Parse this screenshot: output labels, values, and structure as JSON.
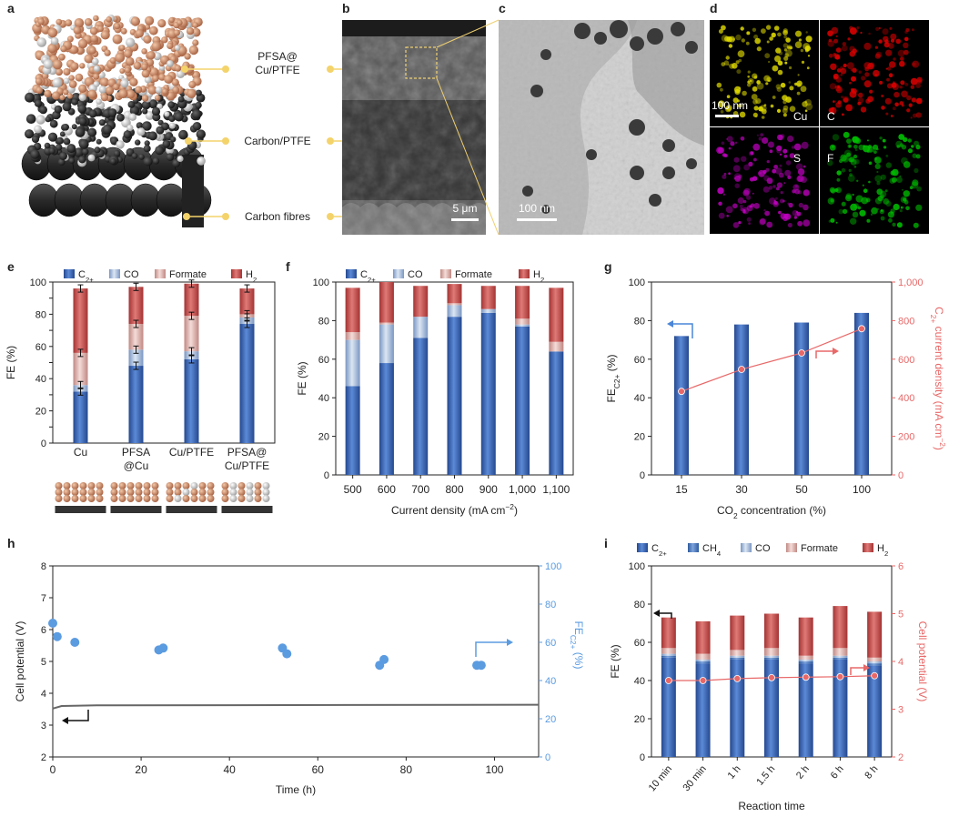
{
  "panel_letters": [
    "a",
    "b",
    "c",
    "d",
    "e",
    "f",
    "g",
    "h",
    "i"
  ],
  "panel_a": {
    "labels": [
      "PFSA@\nCu/PTFE",
      "Carbon/PTFE",
      "Carbon fibres"
    ]
  },
  "panel_b": {
    "scale_bar": "5 μm"
  },
  "panel_c": {
    "scale_bar": "100 nm"
  },
  "panel_d": {
    "scale_bar": "100 nm",
    "elements": [
      "Cu",
      "C",
      "S",
      "F"
    ],
    "colors": [
      "#e6e000",
      "#e00000",
      "#c000c0",
      "#00c000"
    ]
  },
  "colors": {
    "C2plus": "#3a68b8",
    "CH4": "#4a78c0",
    "CO": "#9eb6d6",
    "Formate": "#d9a8a3",
    "H2": "#c84c4c",
    "potential": "#e86868",
    "fe_h": "#5b9be0",
    "cell_h": "#666666"
  },
  "chart_data": [
    {
      "panel": "e",
      "type": "bar",
      "stacked": true,
      "categories": [
        "Cu",
        "PFSA\n@Cu",
        "Cu/PTFE",
        "PFSA@\nCu/PTFE"
      ],
      "ylabel": "FE (%)",
      "ylim": [
        0,
        100
      ],
      "yticks": [
        0,
        10,
        20,
        30,
        40,
        50,
        60,
        70,
        80,
        90,
        100
      ],
      "ytick_labels": [
        "0",
        "",
        "20",
        "",
        "40",
        "",
        "60",
        "",
        "80",
        "",
        "100"
      ],
      "legend": [
        "C2+",
        "CO",
        "Formate",
        "H2"
      ],
      "series": [
        {
          "name": "C2+",
          "values": [
            32,
            48,
            52,
            74
          ]
        },
        {
          "name": "CO",
          "values": [
            4,
            10,
            5,
            4
          ]
        },
        {
          "name": "Formate",
          "values": [
            20,
            16,
            22,
            2
          ]
        },
        {
          "name": "H2",
          "values": [
            40,
            23,
            20,
            16
          ]
        }
      ]
    },
    {
      "panel": "f",
      "type": "bar",
      "stacked": true,
      "categories": [
        "500",
        "600",
        "700",
        "800",
        "900",
        "1,000",
        "1,100"
      ],
      "xlabel": "Current density (mA cm⁻²)",
      "ylabel": "FE (%)",
      "ylim": [
        0,
        100
      ],
      "yticks": [
        0,
        20,
        40,
        60,
        80,
        100
      ],
      "legend": [
        "C2+",
        "CO",
        "Formate",
        "H2"
      ],
      "series": [
        {
          "name": "C2+",
          "values": [
            46,
            58,
            71,
            82,
            84,
            77,
            64
          ]
        },
        {
          "name": "CO",
          "values": [
            24,
            20,
            11,
            6,
            2,
            1,
            0
          ]
        },
        {
          "name": "Formate",
          "values": [
            4,
            1,
            0,
            1,
            0,
            3,
            5
          ]
        },
        {
          "name": "H2",
          "values": [
            23,
            21,
            16,
            10,
            12,
            17,
            28
          ]
        }
      ]
    },
    {
      "panel": "g",
      "type": "bar",
      "categories": [
        "15",
        "30",
        "50",
        "100"
      ],
      "xlabel": "CO₂ concentration (%)",
      "ylabel_main": "FE",
      "ylabel_sub": "C2+",
      "ylabel_tail": " (%)",
      "ylim": [
        0,
        100
      ],
      "yticks": [
        0,
        20,
        40,
        60,
        80,
        100
      ],
      "values": [
        72,
        78,
        79,
        84
      ],
      "y2label_main": "C",
      "y2label_sub": "2+",
      "y2label_tail": " current density (mA cm",
      "y2label_sup": "−2",
      "y2label_end": ")",
      "y2lim": [
        0,
        1000
      ],
      "y2ticks": [
        0,
        200,
        400,
        600,
        800,
        1000
      ],
      "y2tick_labels": [
        "0",
        "200",
        "400",
        "600",
        "800",
        "1,000"
      ],
      "line_values": [
        433,
        547,
        632,
        758
      ]
    },
    {
      "panel": "h",
      "type": "scatter",
      "xlabel": "Time (h)",
      "xlim": [
        0,
        110
      ],
      "xticks": [
        0,
        20,
        40,
        60,
        80,
        100
      ],
      "ylabel": "Cell potential (V)",
      "ylim": [
        2,
        8
      ],
      "yticks": [
        2,
        3,
        4,
        5,
        6,
        7,
        8
      ],
      "y2label_main": "FE",
      "y2label_sub": "C2+",
      "y2label_tail": " (%)",
      "y2lim": [
        0,
        100
      ],
      "y2ticks": [
        0,
        20,
        40,
        60,
        80,
        100
      ],
      "cell_potential": {
        "x": [
          0,
          2,
          10,
          110
        ],
        "y": [
          3.52,
          3.6,
          3.62,
          3.64
        ]
      },
      "fe_points": {
        "x": [
          0,
          1,
          5,
          24,
          25,
          52,
          53,
          74,
          75,
          96,
          97
        ],
        "y": [
          70,
          63,
          60,
          56,
          57,
          57,
          54,
          48,
          51,
          48,
          48
        ]
      }
    },
    {
      "panel": "i",
      "type": "bar",
      "stacked": true,
      "categories": [
        "10 min",
        "30 min",
        "1 h",
        "1.5 h",
        "2 h",
        "6 h",
        "8 h"
      ],
      "xlabel": "Reaction time",
      "ylabel": "FE (%)",
      "ylim": [
        0,
        100
      ],
      "yticks": [
        0,
        20,
        40,
        60,
        80,
        100
      ],
      "legend": [
        "C2+",
        "CH4",
        "CO",
        "Formate",
        "H2"
      ],
      "series": [
        {
          "name": "C2+",
          "values": [
            52,
            49,
            51,
            51,
            49,
            51,
            48
          ]
        },
        {
          "name": "CH4",
          "values": [
            1,
            1,
            1,
            1,
            1,
            1,
            1
          ]
        },
        {
          "name": "CO",
          "values": [
            1,
            1,
            1,
            1,
            1,
            1,
            1
          ]
        },
        {
          "name": "Formate",
          "values": [
            3,
            3,
            3,
            4,
            2,
            4,
            2
          ]
        },
        {
          "name": "H2",
          "values": [
            16,
            17,
            18,
            18,
            20,
            22,
            24
          ]
        }
      ],
      "y2label": "Cell potential (V)",
      "y2lim": [
        2,
        6
      ],
      "y2ticks": [
        2,
        3,
        4,
        5,
        6
      ],
      "line_values": [
        3.6,
        3.6,
        3.64,
        3.66,
        3.67,
        3.68,
        3.7
      ]
    }
  ]
}
